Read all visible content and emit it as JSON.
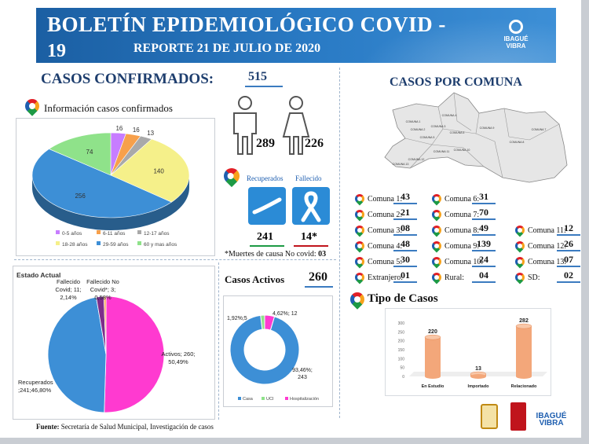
{
  "header": {
    "title": "BOLETÍN EPIDEMIOLÓGICO COVID -",
    "title_num": "19",
    "subtitle": "REPORTE 21 DE JULIO DE 2020",
    "logo_text_1": "IBAGUÉ",
    "logo_text_2": "VIBRA"
  },
  "confirmados": {
    "label": "CASOS CONFIRMADOS:",
    "value": "515",
    "info_label": "Información casos confirmados",
    "hombres": "289",
    "mujeres": "226"
  },
  "recuperados": {
    "rec_label": "Recuperados",
    "fall_label": "Fallecido",
    "rec_value": "241",
    "fall_value": "14*",
    "note_label": "*Muertes de causa No covid:",
    "note_value": "03",
    "rec_color": "#1d9a45",
    "fall_color": "#c0141c"
  },
  "activos": {
    "label": "Casos Activos",
    "value": "260"
  },
  "comuna": {
    "title": "CASOS POR COMUNA",
    "items": [
      {
        "label": "Comuna 1:",
        "value": "43"
      },
      {
        "label": "Comuna 2:",
        "value": "21"
      },
      {
        "label": "Comuna 3:",
        "value": "08"
      },
      {
        "label": "Comuna 4:",
        "value": "48"
      },
      {
        "label": "Comuna 5:",
        "value": "30"
      },
      {
        "label": "Extranjero:",
        "value": "01"
      },
      {
        "label": "Comuna 6:",
        "value": "31"
      },
      {
        "label": "Comuna 7:",
        "value": "70"
      },
      {
        "label": "Comuna 8:",
        "value": "49"
      },
      {
        "label": "Comuna 9:",
        "value": "139"
      },
      {
        "label": "Comuna 10:",
        "value": "24"
      },
      {
        "label": "Rural:",
        "value": "04"
      },
      {
        "label": "Comuna 11:",
        "value": "12"
      },
      {
        "label": "Comuna 12:",
        "value": "26"
      },
      {
        "label": "Comuna 13:",
        "value": "07"
      },
      {
        "label": "SD:",
        "value": "02"
      }
    ],
    "map_labels": [
      "COMUNA 1",
      "COMUNA 2",
      "COMUNA 3",
      "COMUNA 4",
      "COMUNA 5",
      "COMUNA 6",
      "COMUNA 7",
      "COMUNA 8",
      "COMUNA 9",
      "COMUNA 10",
      "COMUNA 11",
      "COMUNA 12",
      "COMUNA 13"
    ]
  },
  "tipo": {
    "title": "Tipo de Casos"
  },
  "source": {
    "label": "Fuente:",
    "text": "Secretaría de Salud Municipal, Investigación de casos"
  },
  "footer_logos": {
    "alcaldia": "ALCALDÍA DE IBAGUÉ",
    "ibague": "IBAGUÉ",
    "vibra": "VIBRA"
  },
  "chart_data": [
    {
      "type": "pie",
      "categories": [
        "0-5 años",
        "6-11 años",
        "12-17 años",
        "18-28 años",
        "29-59 años",
        "60 y mas años"
      ],
      "values": [
        16,
        16,
        13,
        140,
        256,
        74
      ],
      "colors": [
        "#c77dff",
        "#f7a04b",
        "#a9a9a9",
        "#f5f08a",
        "#3d8fd6",
        "#8fe28a"
      ],
      "legend_position": "bottom"
    },
    {
      "type": "pie",
      "title": "Estado Actual",
      "categories": [
        "Activos",
        "Recuperados",
        "Fallecido Covid",
        "Fallecido No Covid*"
      ],
      "values": [
        260,
        241,
        11,
        3
      ],
      "labels": [
        "Activos; 260; 50,49%",
        "Recuperados ;241;46,80%",
        "Fallecido Covid; 11; 2,14%",
        "Fallecido No Covid*; 3; 0,58%"
      ],
      "colors": [
        "#ff3ad0",
        "#3d8fd6",
        "#7d2e8a",
        "#f7a04b"
      ]
    },
    {
      "type": "pie",
      "categories": [
        "Casa",
        "UCI",
        "Hospitalización"
      ],
      "values": [
        243,
        5,
        12
      ],
      "labels": [
        "93,46%; 243",
        "1,92%;5",
        "4,62%; 12"
      ],
      "colors": [
        "#3d8fd6",
        "#8fe28a",
        "#ff3ad0"
      ],
      "legend_position": "bottom"
    },
    {
      "type": "bar",
      "categories": [
        "En Estudio",
        "Importado",
        "Relacionado"
      ],
      "values": [
        220,
        13,
        282
      ],
      "ylim": [
        0,
        300
      ],
      "yticks": [
        0,
        50,
        100,
        150,
        200,
        250,
        300
      ],
      "color": "#f3a77a"
    }
  ]
}
